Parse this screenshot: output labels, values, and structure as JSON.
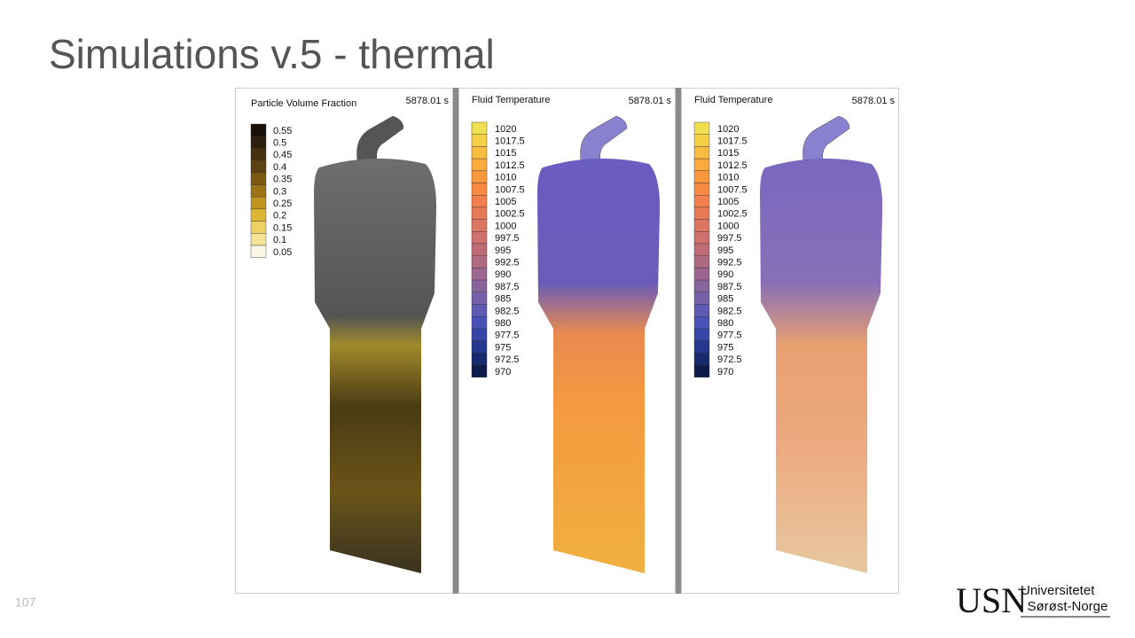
{
  "title": "Simulations v.5 - thermal",
  "panels": [
    {
      "title": "Particle Volume Fraction",
      "time": "5878.01 s",
      "legend": {
        "labels": [
          "0.55",
          "0.5",
          "0.45",
          "0.4",
          "0.35",
          "0.3",
          "0.25",
          "0.2",
          "0.15",
          "0.1",
          "0.05"
        ],
        "colors": [
          "#1a1008",
          "#2e1e0c",
          "#45300e",
          "#5c4210",
          "#7a5a12",
          "#9a7414",
          "#bf9420",
          "#deb633",
          "#ecd060",
          "#f5e496",
          "#fbf6e6"
        ]
      }
    },
    {
      "title": "Fluid Temperature",
      "time": "5878.01 s",
      "legend": {
        "labels": [
          "1020",
          "1017.5",
          "1015",
          "1012.5",
          "1010",
          "1007.5",
          "1005",
          "1002.5",
          "1000",
          "997.5",
          "995",
          "992.5",
          "990",
          "987.5",
          "985",
          "982.5",
          "980",
          "977.5",
          "975",
          "972.5",
          "970"
        ],
        "colors": [
          "#f0e050",
          "#f5cf45",
          "#f8bd40",
          "#fbaa3e",
          "#fb983e",
          "#f98a44",
          "#f2804e",
          "#e87a58",
          "#dc7562",
          "#cf706c",
          "#c06c76",
          "#af6a82",
          "#9c6690",
          "#8a649d",
          "#7660aa",
          "#5f5bb4",
          "#4a52b8",
          "#3546a8",
          "#24388f",
          "#172a70",
          "#0e1c4c"
        ]
      }
    },
    {
      "title": "Fluid Temperature",
      "time": "5878.01 s",
      "legend": {
        "labels": [
          "1020",
          "1017.5",
          "1015",
          "1012.5",
          "1010",
          "1007.5",
          "1005",
          "1002.5",
          "1000",
          "997.5",
          "995",
          "992.5",
          "990",
          "987.5",
          "985",
          "982.5",
          "980",
          "977.5",
          "975",
          "972.5",
          "970"
        ],
        "colors": [
          "#f0e050",
          "#f5cf45",
          "#f8bd40",
          "#fbaa3e",
          "#fb983e",
          "#f98a44",
          "#f2804e",
          "#e87a58",
          "#dc7562",
          "#cf706c",
          "#c06c76",
          "#af6a82",
          "#9c6690",
          "#8a649d",
          "#7660aa",
          "#5f5bb4",
          "#4a52b8",
          "#3546a8",
          "#24388f",
          "#172a70",
          "#0e1c4c"
        ]
      }
    }
  ],
  "page_number": "107",
  "logo": {
    "mark": "USN",
    "line1": "Universitetet",
    "line2": "i Sørøst-Norge"
  }
}
